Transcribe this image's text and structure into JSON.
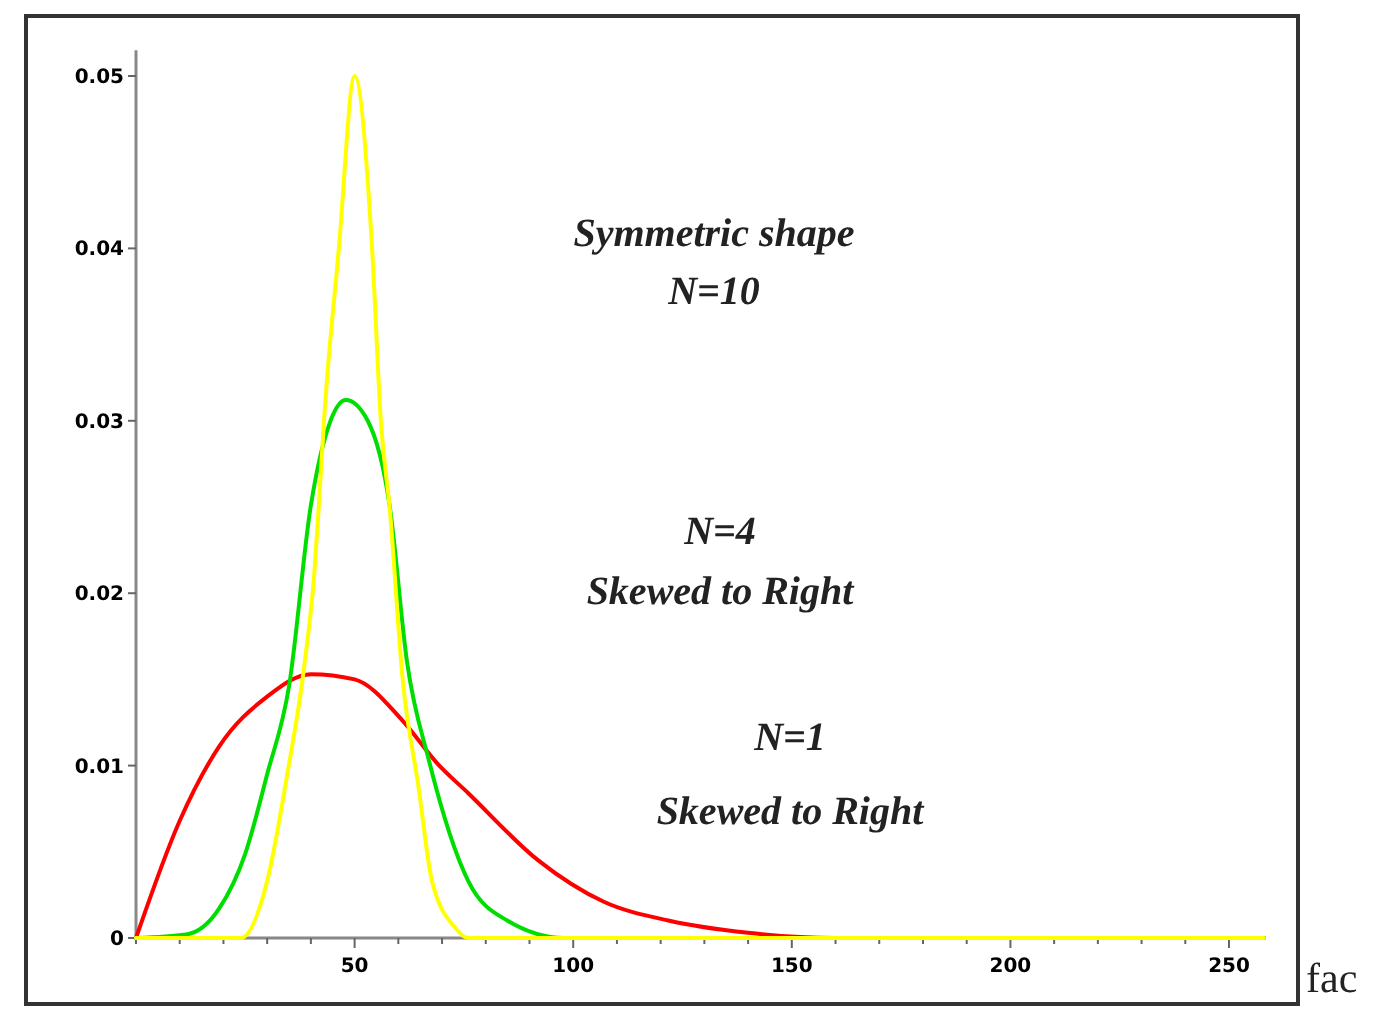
{
  "chart_data": {
    "type": "line",
    "xlim": [
      0,
      258
    ],
    "ylim": [
      0,
      0.0515
    ],
    "xticks": [
      {
        "value": 0,
        "label": null
      },
      {
        "value": 10,
        "label": null
      },
      {
        "value": 20,
        "label": null
      },
      {
        "value": 30,
        "label": null
      },
      {
        "value": 40,
        "label": null
      },
      50,
      {
        "value": 60,
        "label": null
      },
      {
        "value": 70,
        "label": null
      },
      {
        "value": 80,
        "label": null
      },
      {
        "value": 90,
        "label": null
      },
      100,
      {
        "value": 110,
        "label": null
      },
      {
        "value": 120,
        "label": null
      },
      {
        "value": 130,
        "label": null
      },
      {
        "value": 140,
        "label": null
      },
      150,
      {
        "value": 160,
        "label": null
      },
      {
        "value": 170,
        "label": null
      },
      {
        "value": 180,
        "label": null
      },
      {
        "value": 190,
        "label": null
      },
      200,
      {
        "value": 210,
        "label": null
      },
      {
        "value": 220,
        "label": null
      },
      {
        "value": 230,
        "label": null
      },
      {
        "value": 240,
        "label": null
      },
      250
    ],
    "yticks": [
      0,
      0.01,
      0.02,
      0.03,
      0.04,
      0.05
    ],
    "series": [
      {
        "color": "#ff0000",
        "x": [
          0,
          10,
          19,
          30,
          40,
          50,
          61,
          69,
          76,
          92,
          107,
          122,
          140,
          160,
          258
        ],
        "values": [
          0,
          0.0068,
          0.0111,
          0.014,
          0.0153,
          0.015,
          0.0126,
          0.0101,
          0.0084,
          0.0045,
          0.0021,
          0.001,
          0.0003,
          0,
          0
        ]
      },
      {
        "color": "#00dd00",
        "x": [
          0,
          11.5,
          19,
          25,
          30,
          35,
          40,
          44.5,
          48,
          53,
          58,
          62,
          67,
          76,
          85,
          98,
          258
        ],
        "values": [
          0,
          0.0002,
          0.0017,
          0.0049,
          0.0095,
          0.0146,
          0.0251,
          0.03,
          0.0312,
          0.03,
          0.0251,
          0.016,
          0.0103,
          0.0033,
          0.001,
          0,
          0
        ]
      },
      {
        "color": "#ffff00",
        "x": [
          0,
          24,
          30,
          34.6,
          38.5,
          40.8,
          41.8,
          43,
          46.4,
          50,
          54,
          56,
          58,
          61,
          64.6,
          67.7,
          73,
          76,
          258
        ],
        "values": [
          0,
          0,
          0.0033,
          0.0095,
          0.0158,
          0.0212,
          0.025,
          0.03,
          0.04,
          0.05,
          0.04,
          0.03,
          0.025,
          0.015,
          0.0088,
          0.0033,
          0.0006,
          0,
          0
        ]
      }
    ],
    "annotations": [
      "Symmetric shape",
      "N=10",
      "N=4",
      "Skewed to Right",
      "N=1",
      "Skewed to Right",
      "fac"
    ],
    "grid": false
  }
}
